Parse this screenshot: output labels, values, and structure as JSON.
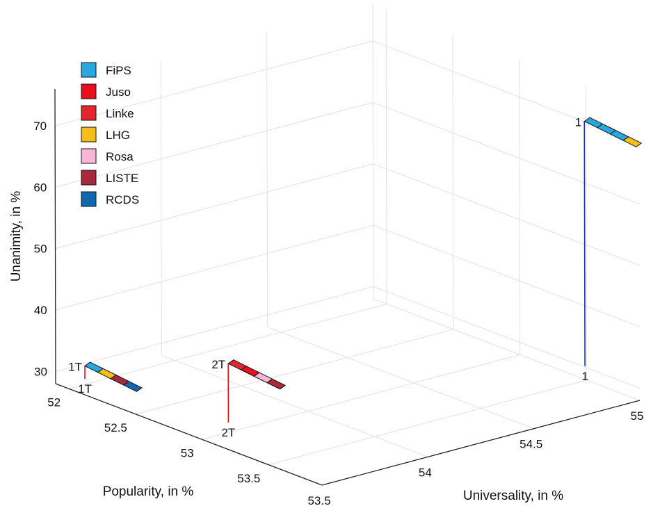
{
  "chart_data": {
    "type": "scatter",
    "subtype": "3d-stacked-bars",
    "xlabel": "Universality, in %",
    "ylabel": "Popularity, in %",
    "zlabel": "Unanimity, in %",
    "xlim": [
      53.5,
      55
    ],
    "ylim": [
      51.9,
      53.9
    ],
    "zlim": [
      28,
      76
    ],
    "x_ticks": [
      "53.5",
      "54",
      "54.5",
      "55"
    ],
    "y_ticks": [
      "52",
      "52.5",
      "53",
      "53.5"
    ],
    "z_ticks": [
      "30",
      "40",
      "50",
      "60",
      "70"
    ],
    "legend_position": "top-left",
    "legend": [
      {
        "name": "FiPS",
        "color": "#2aa7df"
      },
      {
        "name": "Juso",
        "color": "#e8101f"
      },
      {
        "name": "Linke",
        "color": "#e2262e"
      },
      {
        "name": "LHG",
        "color": "#f6be1a"
      },
      {
        "name": "Rosa",
        "color": "#f8b6d6"
      },
      {
        "name": "LISTE",
        "color": "#a8283c"
      },
      {
        "name": "RCDS",
        "color": "#0f67b0"
      }
    ],
    "points": [
      {
        "label": "1T",
        "universality": 53.5,
        "popularity": 52.12,
        "unanimity": 32.7,
        "stem_color": "#e8101f",
        "parties": [
          "FiPS",
          "LHG",
          "LISTE",
          "RCDS"
        ]
      },
      {
        "label": "2T",
        "universality": 53.58,
        "popularity": 53.07,
        "unanimity": 40.2,
        "stem_color": "#e8101f",
        "parties": [
          "Linke",
          "Juso",
          "Rosa",
          "LISTE"
        ]
      },
      {
        "label": "1",
        "universality": 54.98,
        "popularity": 53.52,
        "unanimity": 70.5,
        "stem_color": "#1c2fa6",
        "parties": [
          "FiPS",
          "FiPS",
          "FiPS",
          "LHG"
        ]
      }
    ]
  }
}
